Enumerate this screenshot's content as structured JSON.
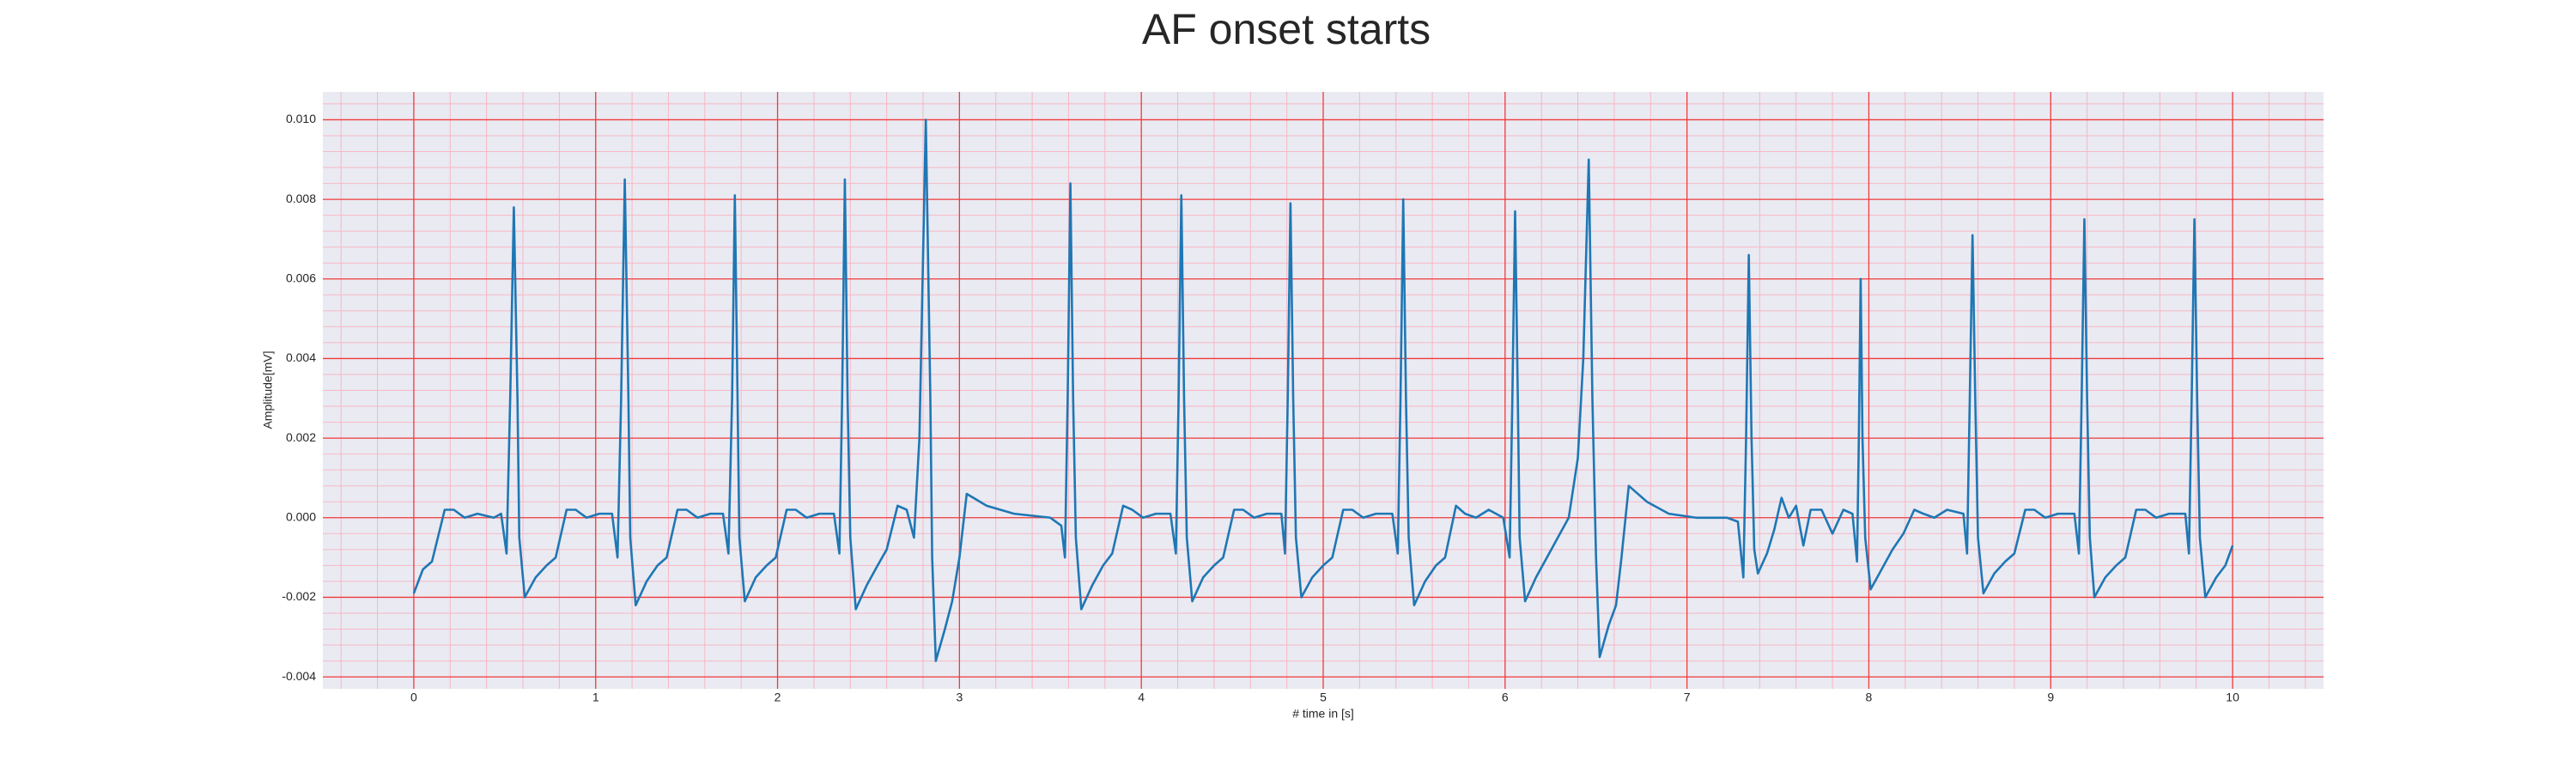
{
  "chart_data": {
    "type": "line",
    "title": "AF onset starts",
    "xlabel": "# time in [s]",
    "ylabel": "Amplitude[mV]",
    "color": "#1f77b4",
    "grid": true,
    "grid_color": "#f03c3c",
    "minor_grid": true,
    "minor_grid_color": "#f7b7c4",
    "xlim": [
      -0.5,
      10.5
    ],
    "ylim": [
      -0.0043,
      0.0107
    ],
    "xticks": [
      0,
      1,
      2,
      3,
      4,
      5,
      6,
      7,
      8,
      9,
      10
    ],
    "yticks": [
      {
        "value": -0.004,
        "label": "-0.004"
      },
      {
        "value": -0.002,
        "label": "-0.002"
      },
      {
        "value": 0,
        "label": "0.000"
      },
      {
        "value": 0.002,
        "label": "0.002"
      },
      {
        "value": 0.004,
        "label": "0.004"
      },
      {
        "value": 0.006,
        "label": "0.006"
      },
      {
        "value": 0.008,
        "label": "0.008"
      },
      {
        "value": 0.01,
        "label": "0.010"
      }
    ],
    "x": [
      0.0,
      0.05,
      0.1,
      0.17,
      0.22,
      0.28,
      0.35,
      0.44,
      0.48,
      0.51,
      0.53,
      0.55,
      0.57,
      0.58,
      0.61,
      0.67,
      0.73,
      0.78,
      0.84,
      0.89,
      0.95,
      1.02,
      1.09,
      1.12,
      1.14,
      1.16,
      1.18,
      1.19,
      1.22,
      1.28,
      1.34,
      1.39,
      1.45,
      1.5,
      1.56,
      1.63,
      1.7,
      1.73,
      1.75,
      1.765,
      1.78,
      1.79,
      1.82,
      1.88,
      1.94,
      1.99,
      2.05,
      2.1,
      2.16,
      2.23,
      2.31,
      2.34,
      2.355,
      2.37,
      2.385,
      2.4,
      2.43,
      2.49,
      2.55,
      2.6,
      2.66,
      2.71,
      2.75,
      2.78,
      2.815,
      2.84,
      2.85,
      2.87,
      2.92,
      2.96,
      3.0,
      3.04,
      3.15,
      3.3,
      3.5,
      3.56,
      3.58,
      3.595,
      3.61,
      3.625,
      3.64,
      3.67,
      3.73,
      3.79,
      3.84,
      3.9,
      3.95,
      4.01,
      4.08,
      4.16,
      4.19,
      4.205,
      4.22,
      4.235,
      4.25,
      4.28,
      4.34,
      4.4,
      4.45,
      4.51,
      4.56,
      4.62,
      4.69,
      4.77,
      4.79,
      4.805,
      4.82,
      4.835,
      4.85,
      4.88,
      4.94,
      5.0,
      5.05,
      5.11,
      5.16,
      5.22,
      5.29,
      5.38,
      5.41,
      5.425,
      5.44,
      5.455,
      5.47,
      5.5,
      5.56,
      5.62,
      5.67,
      5.73,
      5.78,
      5.84,
      5.91,
      5.99,
      6.025,
      6.04,
      6.055,
      6.07,
      6.08,
      6.11,
      6.17,
      6.23,
      6.29,
      6.35,
      6.4,
      6.43,
      6.46,
      6.48,
      6.5,
      6.52,
      6.57,
      6.61,
      6.64,
      6.68,
      6.78,
      6.9,
      7.05,
      7.22,
      7.28,
      7.31,
      7.325,
      7.34,
      7.355,
      7.37,
      7.39,
      7.44,
      7.48,
      7.52,
      7.56,
      7.6,
      7.64,
      7.68,
      7.74,
      7.8,
      7.86,
      7.91,
      7.935,
      7.945,
      7.955,
      7.965,
      7.98,
      8.01,
      8.07,
      8.13,
      8.19,
      8.25,
      8.3,
      8.36,
      8.43,
      8.52,
      8.54,
      8.555,
      8.57,
      8.585,
      8.6,
      8.63,
      8.69,
      8.75,
      8.8,
      8.86,
      8.91,
      8.97,
      9.04,
      9.13,
      9.155,
      9.17,
      9.185,
      9.2,
      9.215,
      9.24,
      9.3,
      9.36,
      9.41,
      9.47,
      9.52,
      9.58,
      9.65,
      9.74,
      9.76,
      9.775,
      9.79,
      9.805,
      9.82,
      9.85,
      9.91,
      9.96,
      10.0
    ],
    "values": [
      -0.0019,
      -0.0013,
      -0.0011,
      0.0002,
      0.0002,
      0.0,
      0.0001,
      0.0,
      0.0001,
      -0.0009,
      0.003,
      0.0078,
      0.003,
      -0.0005,
      -0.002,
      -0.0015,
      -0.0012,
      -0.001,
      0.0002,
      0.0002,
      0.0,
      0.0001,
      0.0001,
      -0.001,
      0.003,
      0.0085,
      0.003,
      -0.0005,
      -0.0022,
      -0.0016,
      -0.0012,
      -0.001,
      0.0002,
      0.0002,
      0.0,
      0.0001,
      0.0001,
      -0.0009,
      0.003,
      0.0081,
      0.003,
      -0.0005,
      -0.0021,
      -0.0015,
      -0.0012,
      -0.001,
      0.0002,
      0.0002,
      0.0,
      0.0001,
      0.0001,
      -0.0009,
      0.003,
      0.0085,
      0.003,
      -0.0005,
      -0.0023,
      -0.0017,
      -0.0012,
      -0.0008,
      0.0003,
      0.0002,
      -0.0005,
      0.002,
      0.01,
      0.003,
      -0.001,
      -0.0036,
      -0.0028,
      -0.0021,
      -0.001,
      0.0006,
      0.0003,
      0.0001,
      0.0,
      -0.0002,
      -0.001,
      0.003,
      0.0084,
      0.003,
      -0.0005,
      -0.0023,
      -0.0017,
      -0.0012,
      -0.0009,
      0.0003,
      0.0002,
      0.0,
      0.0001,
      0.0001,
      -0.0009,
      0.003,
      0.0081,
      0.003,
      -0.0005,
      -0.0021,
      -0.0015,
      -0.0012,
      -0.001,
      0.0002,
      0.0002,
      0.0,
      0.0001,
      0.0001,
      -0.0009,
      0.003,
      0.0079,
      0.003,
      -0.0005,
      -0.002,
      -0.0015,
      -0.0012,
      -0.001,
      0.0002,
      0.0002,
      0.0,
      0.0001,
      0.0001,
      -0.0009,
      0.003,
      0.008,
      0.003,
      -0.0005,
      -0.0022,
      -0.0016,
      -0.0012,
      -0.001,
      0.0003,
      0.0001,
      0.0,
      0.0002,
      0.0,
      -0.001,
      0.003,
      0.0077,
      0.003,
      -0.0005,
      -0.0021,
      -0.0015,
      -0.001,
      -0.0005,
      0.0,
      0.0015,
      0.004,
      0.009,
      0.003,
      -0.001,
      -0.0035,
      -0.0027,
      -0.0022,
      -0.001,
      0.0008,
      0.0004,
      0.0001,
      0.0,
      0.0,
      -0.0001,
      -0.0015,
      0.002,
      0.0066,
      0.002,
      -0.0008,
      -0.0014,
      -0.0009,
      -0.0003,
      0.0005,
      0.0,
      0.0003,
      -0.0007,
      0.0002,
      0.0002,
      -0.0004,
      0.0002,
      0.0001,
      -0.0011,
      0.002,
      0.006,
      0.002,
      -0.0005,
      -0.0018,
      -0.0013,
      -0.0008,
      -0.0004,
      0.0002,
      0.0001,
      0.0,
      0.0002,
      0.0001,
      -0.0009,
      0.003,
      0.0071,
      0.003,
      -0.0005,
      -0.0019,
      -0.0014,
      -0.0011,
      -0.0009,
      0.0002,
      0.0002,
      0.0,
      0.0001,
      0.0001,
      -0.0009,
      0.003,
      0.0075,
      0.003,
      -0.0005,
      -0.002,
      -0.0015,
      -0.0012,
      -0.001,
      0.0002,
      0.0002,
      0.0,
      0.0001,
      0.0001,
      -0.0009,
      0.003,
      0.0075,
      0.003,
      -0.0005,
      -0.002,
      -0.0015,
      -0.0012,
      -0.0007
    ]
  }
}
